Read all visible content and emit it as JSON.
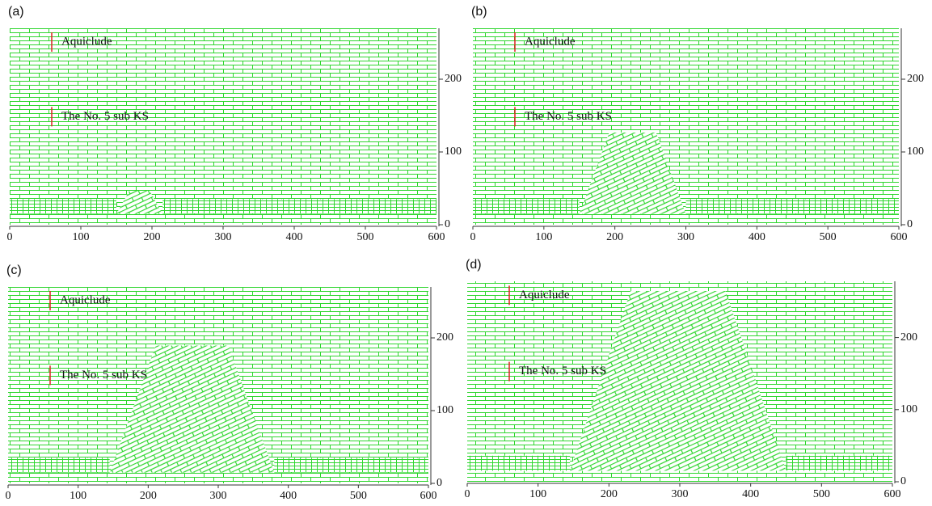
{
  "panels": [
    {
      "label": "(a)",
      "annotations": [
        "Aquiclude",
        "The No. 5 sub KS"
      ],
      "xlim": [
        0,
        600
      ],
      "xticks": [
        0,
        100,
        200,
        300,
        400,
        500,
        600
      ],
      "ylim": [
        0,
        270
      ],
      "yticks": [
        0,
        100,
        200
      ]
    },
    {
      "label": "(b)",
      "annotations": [
        "Aquiclude",
        "The No. 5 sub KS"
      ],
      "xlim": [
        0,
        600
      ],
      "xticks": [
        0,
        100,
        200,
        300,
        400,
        500,
        600
      ],
      "ylim": [
        0,
        270
      ],
      "yticks": [
        0,
        100,
        200
      ]
    },
    {
      "label": "(c)",
      "annotations": [
        "Aquiclude",
        "The No. 5 sub KS"
      ],
      "xlim": [
        0,
        600
      ],
      "xticks": [
        0,
        100,
        200,
        300,
        400,
        500,
        600
      ],
      "ylim": [
        0,
        270
      ],
      "yticks": [
        0,
        100,
        200
      ]
    },
    {
      "label": "(d)",
      "annotations": [
        "Aquiclude",
        "The No. 5 sub KS"
      ],
      "xlim": [
        0,
        600
      ],
      "xticks": [
        0,
        100,
        200,
        300,
        400,
        500,
        600
      ],
      "ylim": [
        0,
        278
      ],
      "yticks": [
        0,
        100,
        200
      ]
    }
  ]
}
